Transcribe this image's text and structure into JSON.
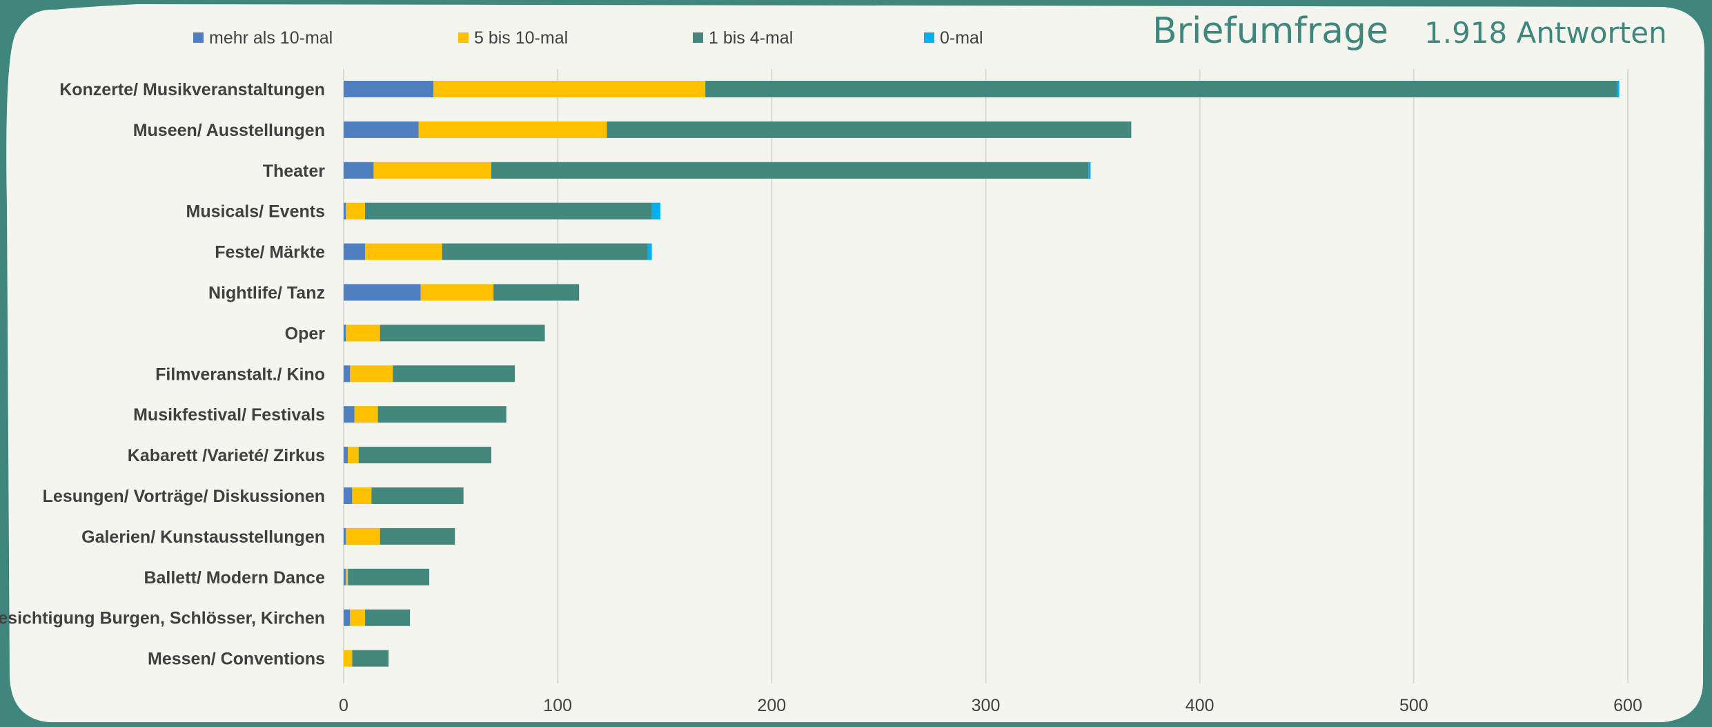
{
  "colors": {
    "background_frame": "#3f877d",
    "panel": "#f5f5f0",
    "gridline": "#d9d9d9",
    "text": "#404040",
    "title": "#3f877d"
  },
  "chart_data": {
    "type": "bar",
    "orientation": "horizontal",
    "stacked": true,
    "title": "Briefumfrage",
    "subtitle": "1.918 Antworten",
    "xlim": [
      0,
      600
    ],
    "xticks": [
      "0",
      "100",
      "200",
      "300",
      "400",
      "500",
      "600"
    ],
    "grid": true,
    "legend_position": "top",
    "categories": [
      "Konzerte/ Musikveranstaltungen",
      "Museen/ Ausstellungen",
      "Theater",
      "Musicals/ Events",
      "Feste/ Märkte",
      "Nightlife/ Tanz",
      "Oper",
      "Filmveranstalt./ Kino",
      "Musikfestival/ Festivals",
      "Kabarett /Varieté/ Zirkus",
      "Lesungen/ Vorträge/ Diskussionen",
      "Galerien/ Kunstausstellungen",
      "Ballett/ Modern Dance",
      "Besichtigung Burgen, Schlösser, Kirchen",
      "Messen/ Conventions"
    ],
    "series": [
      {
        "name": "mehr als 10-mal",
        "color": "#4f7fc0",
        "values": [
          42,
          35,
          14,
          1,
          10,
          36,
          1,
          3,
          5,
          2,
          4,
          1,
          1,
          3,
          0
        ]
      },
      {
        "name": "5 bis 10-mal",
        "color": "#ffc000",
        "values": [
          127,
          88,
          55,
          9,
          36,
          34,
          16,
          20,
          11,
          5,
          9,
          16,
          1,
          7,
          4
        ]
      },
      {
        "name": "1 bis 4-mal",
        "color": "#43877d",
        "values": [
          426,
          245,
          279,
          134,
          96,
          40,
          77,
          57,
          60,
          62,
          43,
          35,
          38,
          21,
          17
        ]
      },
      {
        "name": "0-mal",
        "color": "#00b0f0",
        "values": [
          1,
          0,
          1,
          4,
          2,
          0,
          0,
          0,
          0,
          0,
          0,
          0,
          0,
          0,
          0
        ]
      }
    ]
  }
}
